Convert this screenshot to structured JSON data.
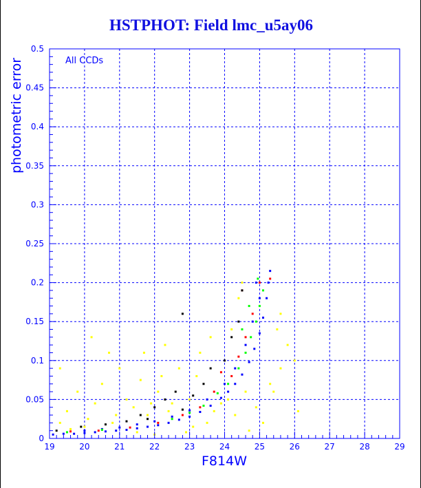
{
  "chart_data": {
    "type": "scatter",
    "title": "HSTPHOT: Field lmc_u5ay06",
    "xlabel": "F814W",
    "ylabel": "photometric error",
    "annotation": "All CCDs",
    "xlim": [
      19,
      29
    ],
    "ylim": [
      0,
      0.5
    ],
    "xticks": [
      "19",
      "20",
      "21",
      "22",
      "23",
      "24",
      "25",
      "26",
      "27",
      "28",
      "29"
    ],
    "yticks": [
      "0",
      "0.05",
      "0.1",
      "0.15",
      "0.2",
      "0.25",
      "0.3",
      "0.35",
      "0.4",
      "0.45",
      "0.5"
    ],
    "grid": true,
    "colors": {
      "axis": "#0000ff",
      "grid": "#0000ff"
    },
    "series": [
      {
        "color": "#ffff00",
        "points": [
          [
            19.3,
            0.02
          ],
          [
            19.5,
            0.035
          ],
          [
            19.8,
            0.06
          ],
          [
            20.1,
            0.025
          ],
          [
            20.3,
            0.045
          ],
          [
            20.5,
            0.07
          ],
          [
            20.7,
            0.11
          ],
          [
            20.9,
            0.03
          ],
          [
            21.0,
            0.09
          ],
          [
            21.2,
            0.05
          ],
          [
            21.4,
            0.04
          ],
          [
            21.5,
            0.008
          ],
          [
            21.6,
            0.075
          ],
          [
            21.8,
            0.03
          ],
          [
            22.0,
            0.005
          ],
          [
            22.1,
            0.06
          ],
          [
            22.3,
            0.12
          ],
          [
            22.5,
            0.045
          ],
          [
            22.7,
            0.09
          ],
          [
            22.9,
            0.008
          ],
          [
            23.1,
            0.015
          ],
          [
            23.3,
            0.11
          ],
          [
            23.5,
            0.02
          ],
          [
            23.7,
            0.035
          ],
          [
            23.9,
            0.045
          ],
          [
            24.1,
            0.05
          ],
          [
            24.3,
            0.03
          ],
          [
            24.6,
            0.06
          ],
          [
            24.9,
            0.04
          ],
          [
            25.3,
            0.07
          ],
          [
            25.6,
            0.09
          ],
          [
            26.0,
            0.1
          ],
          [
            25.8,
            0.12
          ],
          [
            25.6,
            0.16
          ],
          [
            25.5,
            0.14
          ],
          [
            25.4,
            0.06
          ],
          [
            26.1,
            0.035
          ],
          [
            24.4,
            0.18
          ],
          [
            24.2,
            0.14
          ],
          [
            23.6,
            0.13
          ],
          [
            23.2,
            0.08
          ],
          [
            22.2,
            0.08
          ],
          [
            21.7,
            0.11
          ],
          [
            20.2,
            0.13
          ],
          [
            19.3,
            0.09
          ],
          [
            25.1,
            0.02
          ],
          [
            24.7,
            0.01
          ],
          [
            24.5,
            0.2
          ],
          [
            20.0,
            0.015
          ],
          [
            20.8,
            0.02
          ],
          [
            21.9,
            0.045
          ],
          [
            22.4,
            0.035
          ],
          [
            23.0,
            0.05
          ],
          [
            19.6,
            0.012
          ]
        ]
      },
      {
        "color": "#0000ff",
        "points": [
          [
            19.1,
            0.005
          ],
          [
            19.4,
            0.006
          ],
          [
            19.7,
            0.006
          ],
          [
            20.0,
            0.007
          ],
          [
            20.3,
            0.008
          ],
          [
            20.6,
            0.009
          ],
          [
            20.9,
            0.01
          ],
          [
            21.2,
            0.011
          ],
          [
            21.5,
            0.013
          ],
          [
            21.8,
            0.015
          ],
          [
            22.1,
            0.017
          ],
          [
            22.4,
            0.02
          ],
          [
            22.7,
            0.024
          ],
          [
            23.0,
            0.028
          ],
          [
            23.3,
            0.034
          ],
          [
            23.6,
            0.042
          ],
          [
            23.9,
            0.052
          ],
          [
            24.1,
            0.06
          ],
          [
            24.3,
            0.07
          ],
          [
            24.5,
            0.082
          ],
          [
            24.7,
            0.098
          ],
          [
            24.85,
            0.115
          ],
          [
            25.0,
            0.135
          ],
          [
            25.1,
            0.155
          ],
          [
            25.2,
            0.18
          ],
          [
            25.25,
            0.2
          ],
          [
            25.3,
            0.215
          ],
          [
            20.0,
            0.01
          ],
          [
            20.5,
            0.012
          ],
          [
            21.0,
            0.014
          ],
          [
            21.5,
            0.018
          ],
          [
            22.0,
            0.022
          ],
          [
            22.5,
            0.028
          ],
          [
            23.0,
            0.036
          ],
          [
            23.5,
            0.05
          ],
          [
            24.0,
            0.07
          ],
          [
            24.3,
            0.09
          ],
          [
            24.6,
            0.12
          ],
          [
            24.8,
            0.15
          ],
          [
            25.0,
            0.18
          ],
          [
            24.9,
            0.2
          ]
        ]
      },
      {
        "color": "#00ff00",
        "points": [
          [
            22.5,
            0.025
          ],
          [
            23.0,
            0.033
          ],
          [
            23.4,
            0.042
          ],
          [
            23.8,
            0.058
          ],
          [
            24.1,
            0.07
          ],
          [
            24.4,
            0.09
          ],
          [
            24.6,
            0.11
          ],
          [
            24.75,
            0.13
          ],
          [
            24.9,
            0.15
          ],
          [
            25.0,
            0.17
          ],
          [
            25.1,
            0.19
          ],
          [
            24.95,
            0.205
          ],
          [
            24.7,
            0.17
          ],
          [
            24.5,
            0.14
          ],
          [
            19.5,
            0.008
          ],
          [
            20.5,
            0.011
          ]
        ]
      },
      {
        "color": "#ff0000",
        "points": [
          [
            19.6,
            0.009
          ],
          [
            20.4,
            0.01
          ],
          [
            21.3,
            0.014
          ],
          [
            22.1,
            0.02
          ],
          [
            22.8,
            0.03
          ],
          [
            23.3,
            0.04
          ],
          [
            23.7,
            0.06
          ],
          [
            24.2,
            0.08
          ],
          [
            24.4,
            0.105
          ],
          [
            24.6,
            0.13
          ],
          [
            24.8,
            0.16
          ],
          [
            25.0,
            0.2
          ],
          [
            25.3,
            0.205
          ],
          [
            24.5,
            0.19
          ],
          [
            23.9,
            0.085
          ]
        ]
      },
      {
        "color": "#000000",
        "points": [
          [
            19.2,
            0.01
          ],
          [
            19.9,
            0.015
          ],
          [
            20.6,
            0.018
          ],
          [
            21.2,
            0.022
          ],
          [
            21.6,
            0.03
          ],
          [
            22.0,
            0.04
          ],
          [
            22.3,
            0.05
          ],
          [
            22.6,
            0.06
          ],
          [
            22.8,
            0.037
          ],
          [
            23.1,
            0.055
          ],
          [
            23.4,
            0.07
          ],
          [
            23.6,
            0.09
          ],
          [
            24.0,
            0.1
          ],
          [
            24.2,
            0.13
          ],
          [
            24.4,
            0.15
          ],
          [
            22.8,
            0.16
          ],
          [
            24.5,
            0.19
          ],
          [
            21.8,
            0.025
          ]
        ]
      }
    ]
  }
}
